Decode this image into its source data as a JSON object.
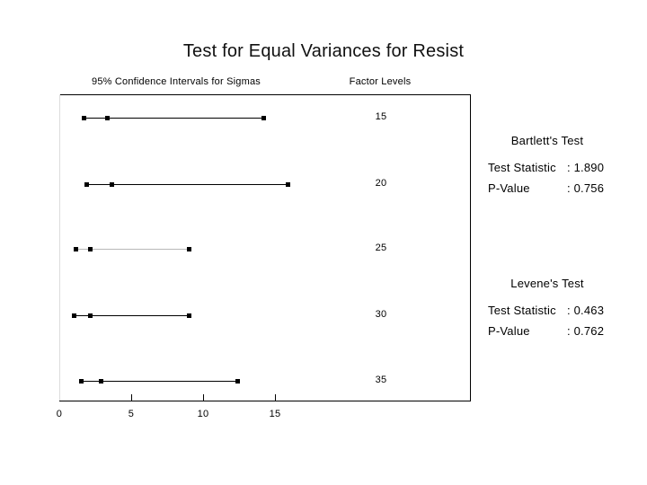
{
  "title": "Test for Equal Variances for Resist",
  "headers": {
    "left": "95% Confidence Intervals for Sigmas",
    "right": "Factor Levels"
  },
  "chart_data": {
    "type": "ci_interval_plot",
    "title": "Test for Equal Variances for Resist",
    "x_axis_label": "",
    "x_ticks": [
      0,
      5,
      10,
      15
    ],
    "xlim": [
      0,
      18.5
    ],
    "grid": false,
    "categories": [
      "15",
      "20",
      "25",
      "30",
      "35"
    ],
    "series": [
      {
        "level": "15",
        "lower": 1.7,
        "estimate": 3.3,
        "upper": 14.2
      },
      {
        "level": "20",
        "lower": 1.9,
        "estimate": 3.6,
        "upper": 15.9
      },
      {
        "level": "25",
        "lower": 1.1,
        "estimate": 2.1,
        "upper": 9.0
      },
      {
        "level": "30",
        "lower": 1.0,
        "estimate": 2.1,
        "upper": 9.0
      },
      {
        "level": "35",
        "lower": 1.5,
        "estimate": 2.9,
        "upper": 12.4
      }
    ]
  },
  "tests": {
    "bartlett": {
      "name": "Bartlett's Test",
      "rows": [
        {
          "label": "Test Statistic",
          "value": ": 1.890"
        },
        {
          "label": "P-Value",
          "value": ": 0.756"
        }
      ]
    },
    "levene": {
      "name": "Levene's Test",
      "rows": [
        {
          "label": "Test Statistic",
          "value": ": 0.463"
        },
        {
          "label": "P-Value",
          "value": ": 0.762"
        }
      ]
    }
  },
  "colors": {
    "ink": "#000000",
    "background": "#ffffff",
    "muted_interval_line": "#b8b8b8"
  }
}
